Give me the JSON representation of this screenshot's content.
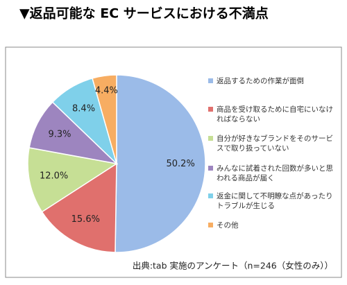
{
  "chart_data": {
    "type": "pie",
    "title": "▼返品可能な EC サービスにおける不満点",
    "categories": [
      "返品するための作業が面倒",
      "商品を受け取るために自宅にいなければならない",
      "自分が好きなブランドをそのサービスで取り扱っていない",
      "みんなに試着された回数が多いと思われる商品が届く",
      "返金に関して不明瞭な点があったりトラブルが生じる",
      "その他"
    ],
    "values": [
      50.2,
      15.6,
      12.0,
      9.3,
      8.4,
      4.4
    ],
    "value_labels": [
      "50.2%",
      "15.6%",
      "12.0%",
      "9.3%",
      "8.4%",
      "4.4%"
    ],
    "colors": [
      "#9bbbe8",
      "#e0706d",
      "#c6df95",
      "#9d85bf",
      "#7fd0ea",
      "#f7ad62"
    ],
    "source": "出典:tab 実施のアンケート（n=246（女性のみ））"
  }
}
